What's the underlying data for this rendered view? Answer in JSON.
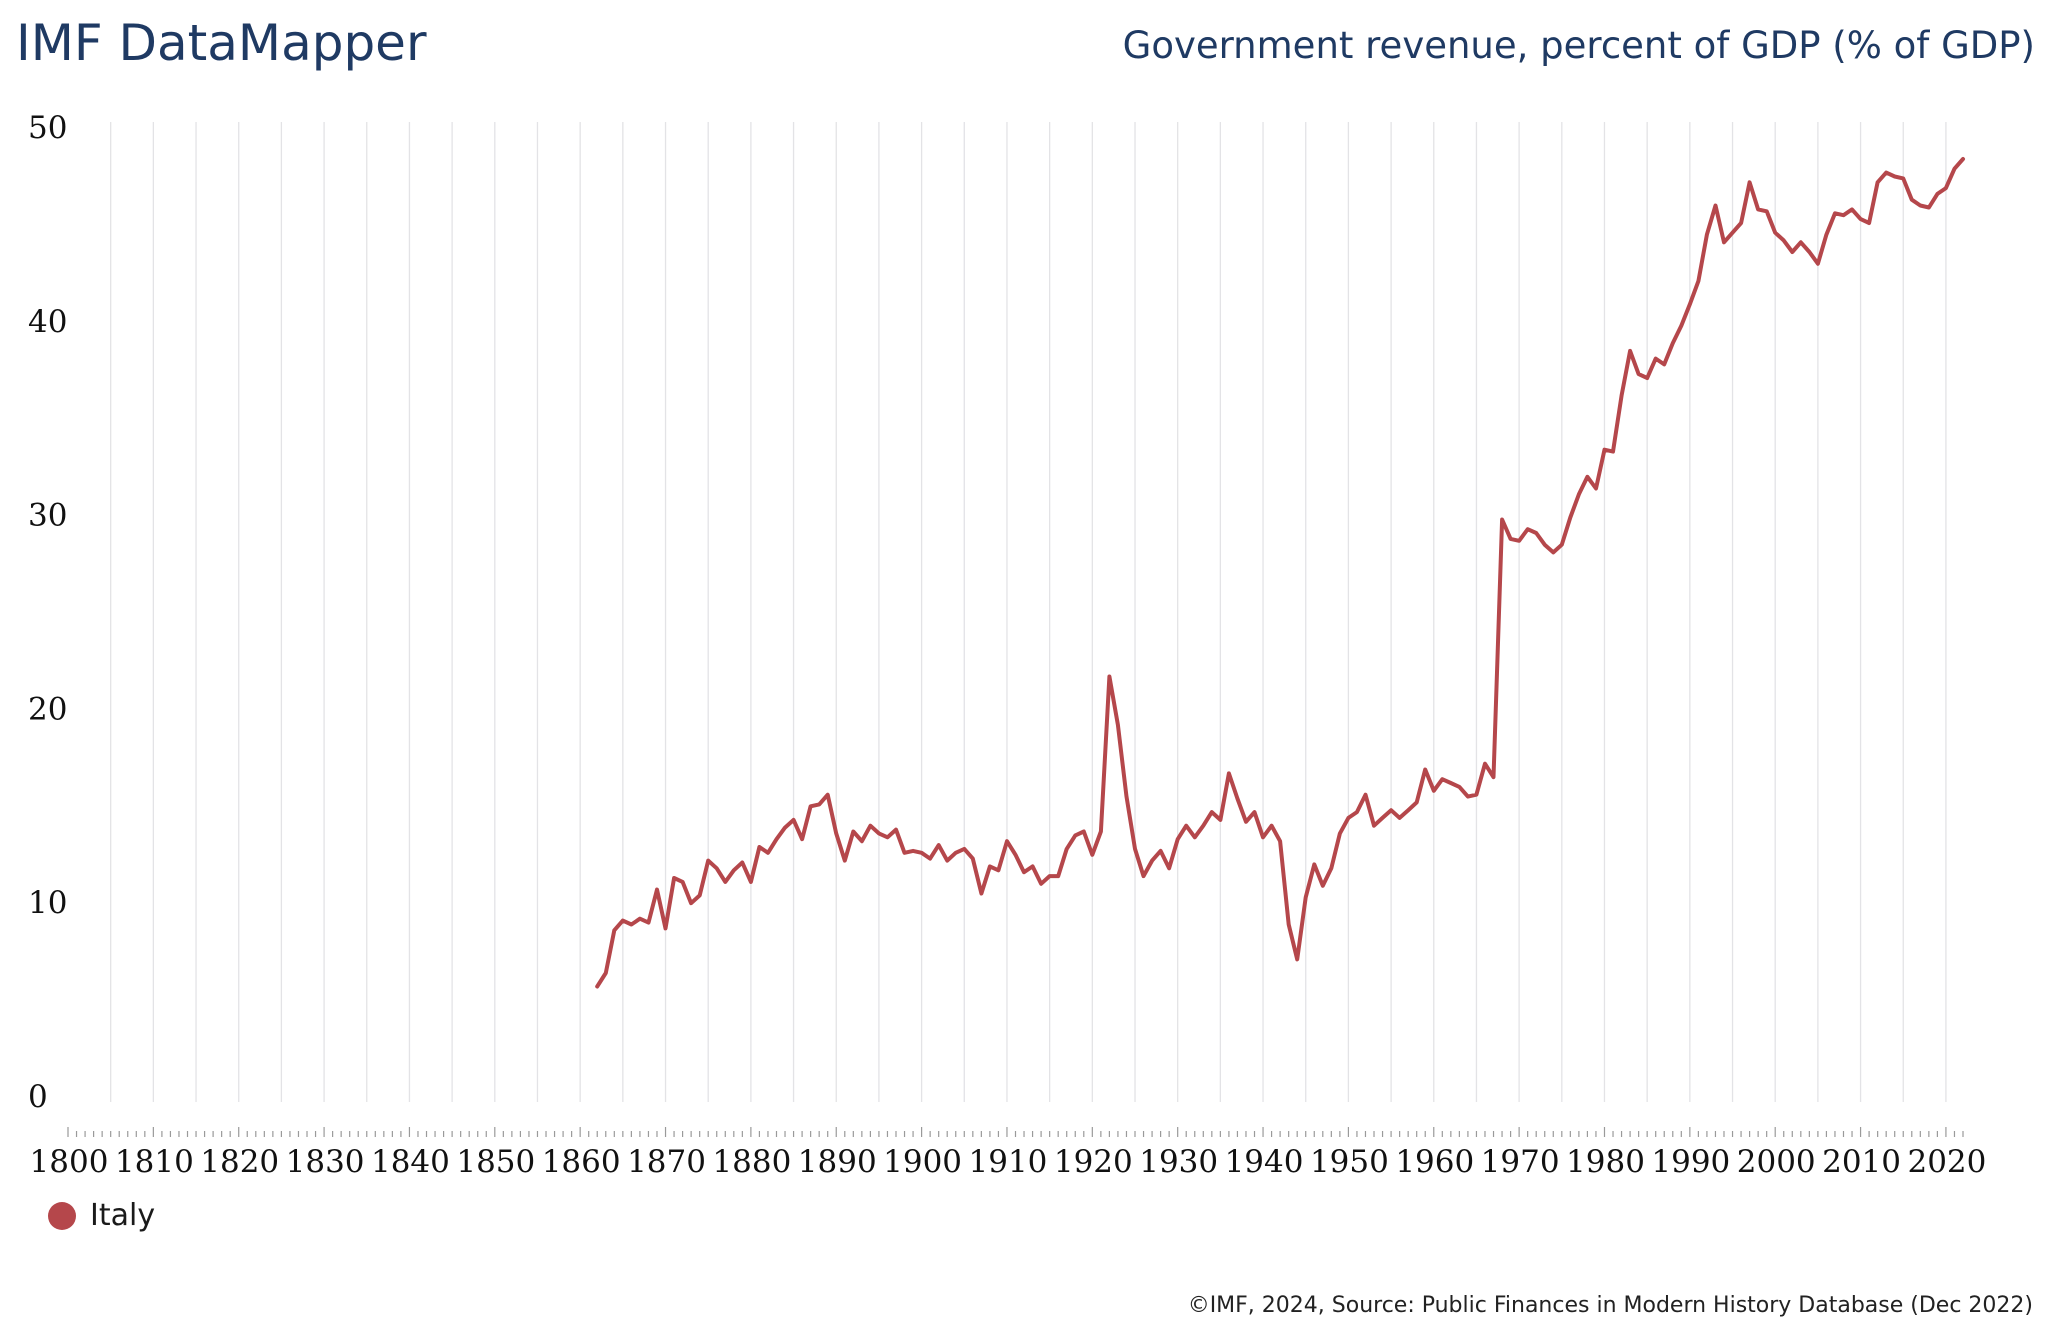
{
  "header": {
    "brand": "IMF DataMapper",
    "title": "Government revenue, percent of GDP (% of GDP)"
  },
  "footer": {
    "source": "©IMF, 2024, Source: Public Finances in Modern History Database (Dec 2022)"
  },
  "colors": {
    "series_italy": "#b5474b",
    "gridline": "#e3e3e6",
    "axis_dots": "#9a9a9a"
  },
  "chart_data": {
    "type": "line",
    "title": "Government revenue, percent of GDP (% of GDP)",
    "xlabel": "",
    "ylabel": "",
    "xlim": [
      1800,
      2022
    ],
    "ylim": [
      0,
      50
    ],
    "grid": "vertical",
    "legend_position": "bottom-left",
    "x_ticks": [
      1800,
      1810,
      1820,
      1830,
      1840,
      1850,
      1860,
      1870,
      1880,
      1890,
      1900,
      1910,
      1920,
      1930,
      1940,
      1950,
      1960,
      1970,
      1980,
      1990,
      2000,
      2010,
      2020
    ],
    "y_ticks": [
      0,
      10,
      20,
      30,
      40,
      50
    ],
    "series": [
      {
        "name": "Italy",
        "x": [
          1862,
          1863,
          1864,
          1865,
          1866,
          1867,
          1868,
          1869,
          1870,
          1871,
          1872,
          1873,
          1874,
          1875,
          1876,
          1877,
          1878,
          1879,
          1880,
          1881,
          1882,
          1883,
          1884,
          1885,
          1886,
          1887,
          1888,
          1889,
          1890,
          1891,
          1892,
          1893,
          1894,
          1895,
          1896,
          1897,
          1898,
          1899,
          1900,
          1901,
          1902,
          1903,
          1904,
          1905,
          1906,
          1907,
          1908,
          1909,
          1910,
          1911,
          1912,
          1913,
          1914,
          1915,
          1916,
          1917,
          1918,
          1919,
          1920,
          1921,
          1922,
          1923,
          1924,
          1925,
          1926,
          1927,
          1928,
          1929,
          1930,
          1931,
          1932,
          1933,
          1934,
          1935,
          1936,
          1937,
          1938,
          1939,
          1940,
          1941,
          1942,
          1943,
          1944,
          1945,
          1946,
          1947,
          1948,
          1949,
          1950,
          1951,
          1952,
          1953,
          1954,
          1955,
          1956,
          1957,
          1958,
          1959,
          1960,
          1961,
          1962,
          1963,
          1964,
          1965,
          1966,
          1967,
          1968,
          1969,
          1970,
          1971,
          1972,
          1973,
          1974,
          1975,
          1976,
          1977,
          1978,
          1979,
          1980,
          1981,
          1982,
          1983,
          1984,
          1985,
          1986,
          1987,
          1988,
          1989,
          1990,
          1991,
          1992,
          1993,
          1994,
          1995,
          1996,
          1997,
          1998,
          1999,
          2000,
          2001,
          2002,
          2003,
          2004,
          2005,
          2006,
          2007,
          2008,
          2009,
          2010,
          2011,
          2012,
          2013,
          2014,
          2015,
          2016,
          2017,
          2018,
          2019,
          2020,
          2021,
          2022
        ],
        "values": [
          5.7,
          6.4,
          8.6,
          9.1,
          8.9,
          9.2,
          9.0,
          10.7,
          8.7,
          11.3,
          11.1,
          10.0,
          10.4,
          12.2,
          11.8,
          11.1,
          11.7,
          12.1,
          11.1,
          12.9,
          12.6,
          13.3,
          13.9,
          14.3,
          13.3,
          15.0,
          15.1,
          15.6,
          13.6,
          12.2,
          13.7,
          13.2,
          14.0,
          13.6,
          13.4,
          13.8,
          12.6,
          12.7,
          12.6,
          12.3,
          13.0,
          12.2,
          12.6,
          12.8,
          12.3,
          10.5,
          11.9,
          11.7,
          13.2,
          12.5,
          11.6,
          11.9,
          11.0,
          11.4,
          11.4,
          12.8,
          13.5,
          13.7,
          12.5,
          13.7,
          21.7,
          19.2,
          15.5,
          12.8,
          11.4,
          12.2,
          12.7,
          11.8,
          13.3,
          14.0,
          13.4,
          14.0,
          14.7,
          14.3,
          16.7,
          15.4,
          14.2,
          14.7,
          13.4,
          14.0,
          13.2,
          8.9,
          7.1,
          10.3,
          12.0,
          10.9,
          11.8,
          13.6,
          14.4,
          14.7,
          15.6,
          14.0,
          14.4,
          14.8,
          14.4,
          14.8,
          15.2,
          16.9,
          15.8,
          16.4,
          16.2,
          16.0,
          15.5,
          15.6,
          17.2,
          16.5,
          29.8,
          28.8,
          28.7,
          29.3,
          29.1,
          28.5,
          28.1,
          28.5,
          29.9,
          31.1,
          32.0,
          31.4,
          33.4,
          33.3,
          36.2,
          38.5,
          37.3,
          37.1,
          38.1,
          37.8,
          38.9,
          39.8,
          40.9,
          42.1,
          44.5,
          46.0,
          44.1,
          44.6,
          45.1,
          47.2,
          45.8,
          45.7,
          44.6,
          44.2,
          43.6,
          44.1,
          43.6,
          43.0,
          44.5,
          45.6,
          45.5,
          45.8,
          45.3,
          45.1,
          47.2,
          47.7,
          47.5,
          47.4,
          46.3,
          46.0,
          45.9,
          46.6,
          46.9,
          47.9,
          48.4
        ]
      }
    ]
  }
}
